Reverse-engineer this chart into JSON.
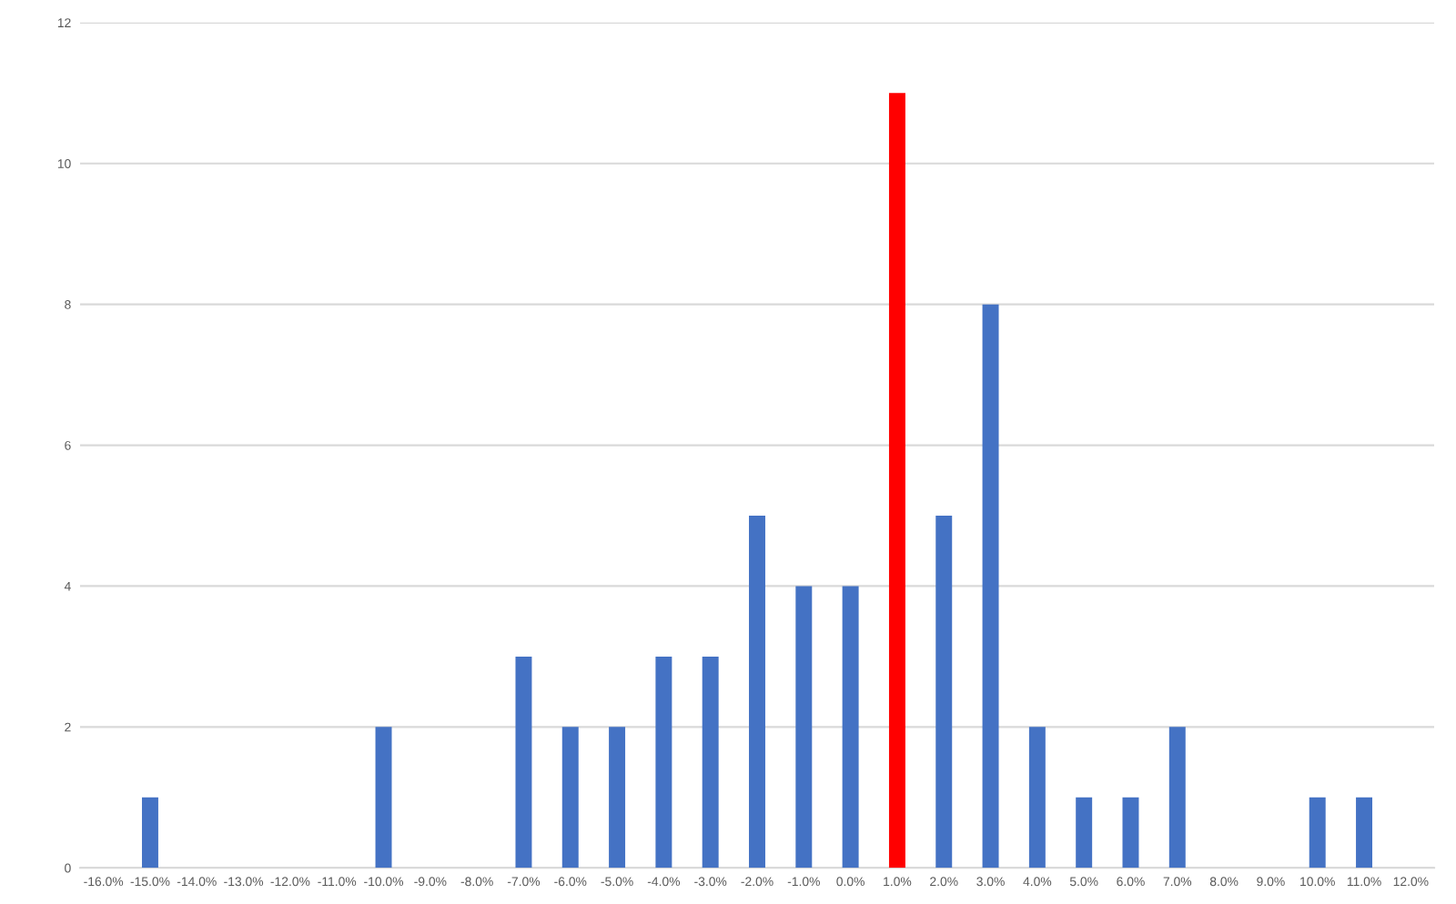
{
  "chart_data": {
    "type": "bar",
    "categories": [
      "-16.0%",
      "-15.0%",
      "-14.0%",
      "-13.0%",
      "-12.0%",
      "-11.0%",
      "-10.0%",
      "-9.0%",
      "-8.0%",
      "-7.0%",
      "-6.0%",
      "-5.0%",
      "-4.0%",
      "-3.0%",
      "-2.0%",
      "-1.0%",
      "0.0%",
      "1.0%",
      "2.0%",
      "3.0%",
      "4.0%",
      "5.0%",
      "6.0%",
      "7.0%",
      "8.0%",
      "9.0%",
      "10.0%",
      "11.0%",
      "12.0%"
    ],
    "values": [
      0,
      1,
      0,
      0,
      0,
      0,
      2,
      0,
      0,
      3,
      2,
      2,
      3,
      3,
      5,
      4,
      4,
      11,
      5,
      8,
      2,
      1,
      1,
      2,
      0,
      0,
      1,
      1,
      0
    ],
    "colors": [
      "#4472c4",
      "#4472c4",
      "#4472c4",
      "#4472c4",
      "#4472c4",
      "#4472c4",
      "#4472c4",
      "#4472c4",
      "#4472c4",
      "#4472c4",
      "#4472c4",
      "#4472c4",
      "#4472c4",
      "#4472c4",
      "#4472c4",
      "#4472c4",
      "#4472c4",
      "#ff0000",
      "#4472c4",
      "#4472c4",
      "#4472c4",
      "#4472c4",
      "#4472c4",
      "#4472c4",
      "#4472c4",
      "#4472c4",
      "#4472c4",
      "#4472c4",
      "#4472c4"
    ],
    "ylim": [
      0,
      12
    ],
    "yticks": [
      0,
      2,
      4,
      6,
      8,
      10,
      12
    ],
    "grid": "y",
    "legend": false
  }
}
